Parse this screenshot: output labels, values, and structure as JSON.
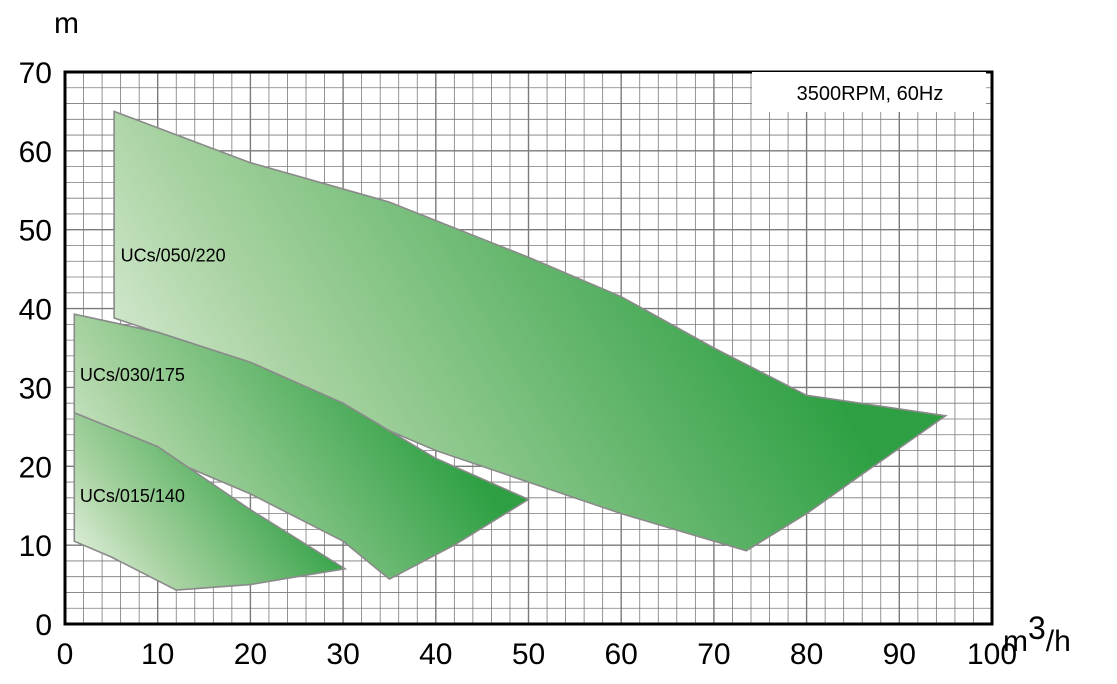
{
  "chart_data": {
    "type": "area",
    "title": "",
    "annotation": "3500RPM, 60Hz",
    "xlabel": "m3/h",
    "xlabel_base": "m",
    "xlabel_sup": "3",
    "xlabel_tail": "/h",
    "ylabel": "m",
    "xlim": [
      0,
      100
    ],
    "ylim": [
      0,
      70
    ],
    "xticks": [
      "0",
      "10",
      "20",
      "30",
      "40",
      "50",
      "60",
      "70",
      "80",
      "90",
      "100"
    ],
    "yticks": [
      "0",
      "10",
      "20",
      "30",
      "40",
      "50",
      "60",
      "70"
    ],
    "grid": true,
    "minor_grid_step_x": 2,
    "minor_grid_step_y": 2,
    "colors": {
      "fill_dark": "#2ea043",
      "fill_light": "#f2f7ef",
      "outline": "#8a8a8a",
      "grid": "#7a7a7a"
    },
    "series": [
      {
        "name": "UCs/050/220",
        "boundary": [
          [
            5.3,
            38.8
          ],
          [
            5.3,
            65
          ],
          [
            20,
            58.5
          ],
          [
            35,
            53.5
          ],
          [
            50,
            46.5
          ],
          [
            60,
            41.5
          ],
          [
            70,
            35
          ],
          [
            80,
            29
          ],
          [
            95,
            26.4
          ],
          [
            86,
            19
          ],
          [
            80,
            14
          ],
          [
            73.5,
            9.3
          ],
          [
            60,
            14
          ],
          [
            50,
            18
          ],
          [
            40,
            22
          ],
          [
            30,
            27
          ],
          [
            20,
            33
          ],
          [
            5.3,
            38.8
          ]
        ]
      },
      {
        "name": "UCs/030/175",
        "boundary": [
          [
            1,
            39.3
          ],
          [
            10,
            37
          ],
          [
            20,
            33.2
          ],
          [
            30,
            28
          ],
          [
            40,
            21
          ],
          [
            50,
            15.8
          ],
          [
            42,
            10
          ],
          [
            35,
            5.7
          ],
          [
            30,
            10.5
          ],
          [
            20,
            16.5
          ],
          [
            10,
            21.5
          ],
          [
            1,
            26.8
          ],
          [
            1,
            39.3
          ]
        ]
      },
      {
        "name": "UCs/015/140",
        "boundary": [
          [
            1,
            26.8
          ],
          [
            10,
            22.5
          ],
          [
            20,
            14.5
          ],
          [
            30.2,
            7
          ],
          [
            25,
            6
          ],
          [
            20,
            5
          ],
          [
            12,
            4.3
          ],
          [
            5,
            8.5
          ],
          [
            1,
            10.5
          ],
          [
            1,
            26.8
          ]
        ]
      }
    ],
    "label_anchors": [
      {
        "name": "UCs/050/220",
        "x": 6,
        "y": 46
      },
      {
        "name": "UCs/030/175",
        "x": 1.6,
        "y": 30.8
      },
      {
        "name": "UCs/015/140",
        "x": 1.6,
        "y": 15.5
      }
    ]
  }
}
